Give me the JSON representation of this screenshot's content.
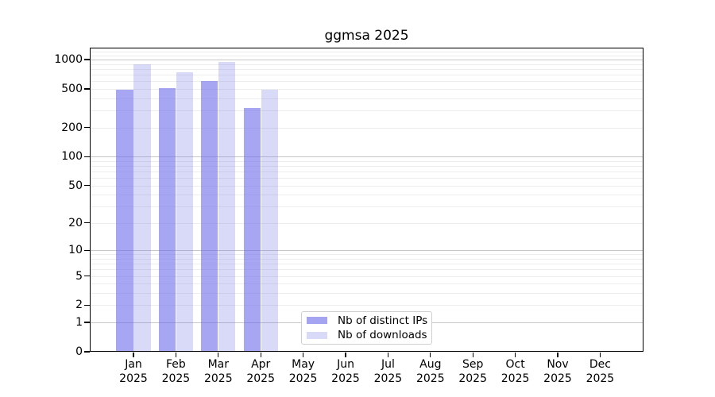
{
  "title": "ggmsa 2025",
  "legend": {
    "position": "lower center",
    "items": [
      {
        "label": "Nb of distinct IPs",
        "color": "#a4a4f0"
      },
      {
        "label": "Nb of downloads",
        "color": "#d9d9f8"
      }
    ]
  },
  "chart_data": {
    "type": "bar",
    "title": "ggmsa 2025",
    "xlabel": "",
    "ylabel": "",
    "categories": [
      "Jan",
      "Feb",
      "Mar",
      "Apr",
      "May",
      "Jun",
      "Jul",
      "Aug",
      "Sep",
      "Oct",
      "Nov",
      "Dec"
    ],
    "category_year": "2025",
    "series": [
      {
        "name": "Nb of distinct IPs",
        "fill": "rgba(107,107,233,0.6)",
        "values": [
          485,
          505,
          600,
          315,
          null,
          null,
          null,
          null,
          null,
          null,
          null,
          null
        ]
      },
      {
        "name": "Nb of downloads",
        "fill": "rgba(128,128,232,0.3)",
        "values": [
          900,
          740,
          945,
          485,
          null,
          null,
          null,
          null,
          null,
          null,
          null,
          null
        ]
      }
    ],
    "y_scale": "log1p",
    "ylim": [
      0,
      1320
    ],
    "y_ticks": [
      0,
      1,
      2,
      5,
      10,
      20,
      50,
      100,
      200,
      500,
      1000
    ],
    "grid": {
      "visible": true,
      "major_values": [
        1,
        10,
        100,
        1000
      ],
      "minor_values": [
        2,
        3,
        4,
        5,
        6,
        7,
        8,
        9,
        20,
        30,
        40,
        50,
        60,
        70,
        80,
        90,
        200,
        300,
        400,
        500,
        600,
        700,
        800,
        900,
        1100,
        1200,
        1300
      ],
      "major_color": "#c6c6c6",
      "minor_color": "#ededed"
    }
  }
}
